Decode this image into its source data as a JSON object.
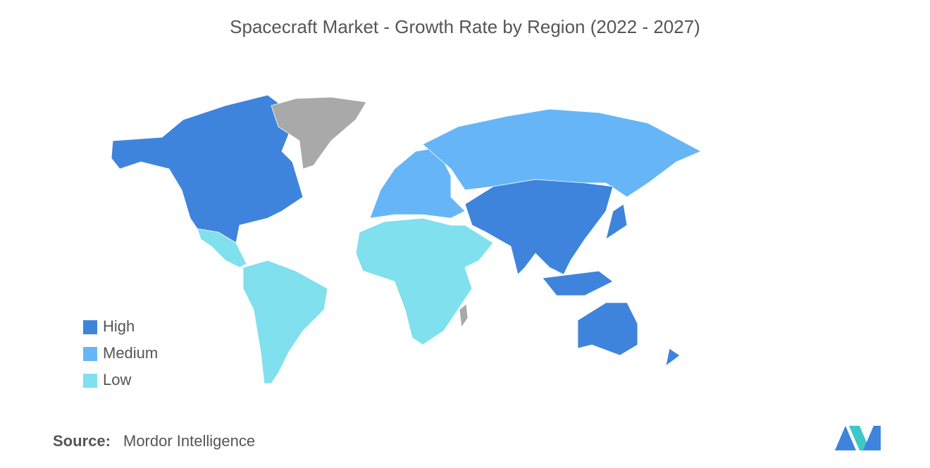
{
  "title": "Spacecraft Market - Growth Rate by Region (2022 - 2027)",
  "legend": [
    {
      "label": "High",
      "color": "#3f84dc"
    },
    {
      "label": "Medium",
      "color": "#66b6f7"
    },
    {
      "label": "Low",
      "color": "#80e0ee"
    }
  ],
  "source": {
    "label": "Source:",
    "text": "Mordor Intelligence"
  }
}
